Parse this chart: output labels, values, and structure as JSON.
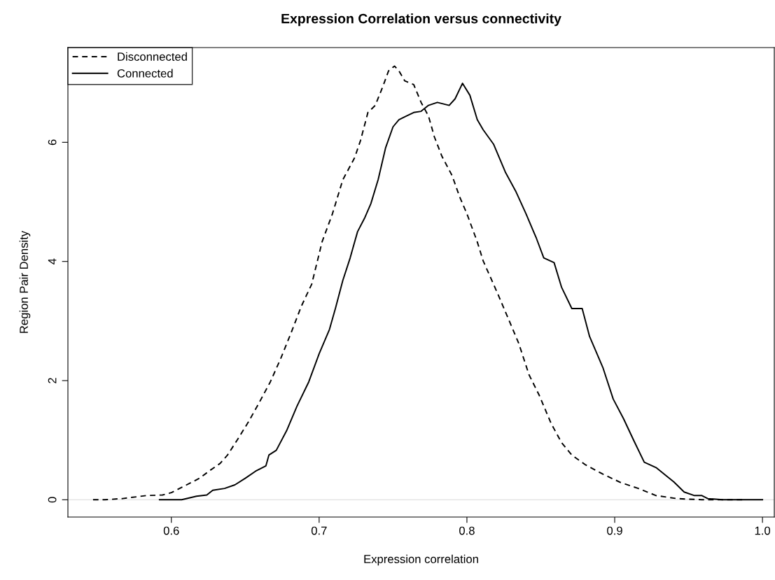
{
  "chart_data": {
    "type": "line",
    "title": "Expression Correlation versus connectivity",
    "xlabel": "Expression correlation",
    "ylabel": "Region Pair Density",
    "xlim": [
      0.53,
      1.008
    ],
    "ylim": [
      -0.29,
      7.59
    ],
    "xticks": [
      0.6,
      0.7,
      0.8,
      0.9,
      {
        "value": 1,
        "label": "1.0"
      }
    ],
    "yticks": [
      0,
      2,
      4,
      6
    ],
    "grid": false,
    "legend": "top left",
    "ref_lines": [
      {
        "axis": "y",
        "value": 0,
        "color": "#d9d9d9",
        "line_style": "solid"
      }
    ],
    "series": [
      {
        "name": "Disconnected",
        "color": "#000000",
        "line_style": "dashed",
        "x": [
          0.547,
          0.555,
          0.567,
          0.583,
          0.594,
          0.6,
          0.608,
          0.619,
          0.626,
          0.633,
          0.638,
          0.645,
          0.652,
          0.659,
          0.667,
          0.674,
          0.681,
          0.688,
          0.695,
          0.702,
          0.709,
          0.716,
          0.724,
          0.728,
          0.733,
          0.738,
          0.743,
          0.747,
          0.751,
          0.754,
          0.758,
          0.764,
          0.769,
          0.774,
          0.778,
          0.783,
          0.79,
          0.795,
          0.8,
          0.807,
          0.811,
          0.821,
          0.828,
          0.835,
          0.842,
          0.849,
          0.857,
          0.864,
          0.871,
          0.88,
          0.892,
          0.904,
          0.916,
          0.928,
          0.942,
          0.959,
          0.987
        ],
        "values": [
          0,
          0,
          0.02,
          0.07,
          0.08,
          0.12,
          0.22,
          0.36,
          0.49,
          0.61,
          0.75,
          1.02,
          1.3,
          1.61,
          1.98,
          2.37,
          2.8,
          3.25,
          3.62,
          4.33,
          4.8,
          5.37,
          5.74,
          6.03,
          6.5,
          6.62,
          6.93,
          7.2,
          7.28,
          7.2,
          7.03,
          6.97,
          6.67,
          6.44,
          6.09,
          5.77,
          5.44,
          5.09,
          4.8,
          4.33,
          4.01,
          3.45,
          3.04,
          2.63,
          2.1,
          1.75,
          1.28,
          0.96,
          0.75,
          0.59,
          0.43,
          0.29,
          0.19,
          0.07,
          0.02,
          0,
          0
        ]
      },
      {
        "name": "Connected",
        "color": "#000000",
        "line_style": "solid",
        "x": [
          0.592,
          0.607,
          0.617,
          0.624,
          0.628,
          0.636,
          0.643,
          0.65,
          0.657,
          0.664,
          0.666,
          0.671,
          0.678,
          0.685,
          0.693,
          0.7,
          0.707,
          0.711,
          0.716,
          0.721,
          0.726,
          0.731,
          0.735,
          0.74,
          0.745,
          0.75,
          0.754,
          0.759,
          0.764,
          0.769,
          0.774,
          0.78,
          0.788,
          0.792,
          0.797,
          0.802,
          0.807,
          0.811,
          0.818,
          0.826,
          0.833,
          0.84,
          0.847,
          0.852,
          0.859,
          0.864,
          0.871,
          0.878,
          0.883,
          0.892,
          0.899,
          0.906,
          0.913,
          0.92,
          0.928,
          0.935,
          0.94,
          0.947,
          0.954,
          0.959,
          0.963,
          0.973,
          1.0
        ],
        "values": [
          0,
          0,
          0.06,
          0.08,
          0.16,
          0.19,
          0.25,
          0.36,
          0.48,
          0.57,
          0.75,
          0.83,
          1.16,
          1.57,
          1.98,
          2.45,
          2.86,
          3.21,
          3.68,
          4.06,
          4.5,
          4.74,
          4.97,
          5.38,
          5.91,
          6.26,
          6.38,
          6.44,
          6.5,
          6.52,
          6.62,
          6.67,
          6.62,
          6.73,
          6.99,
          6.79,
          6.38,
          6.21,
          5.97,
          5.5,
          5.18,
          4.8,
          4.39,
          4.06,
          3.98,
          3.57,
          3.21,
          3.21,
          2.74,
          2.22,
          1.69,
          1.36,
          0.99,
          0.63,
          0.54,
          0.4,
          0.3,
          0.13,
          0.07,
          0.07,
          0.02,
          0,
          0
        ]
      }
    ]
  }
}
